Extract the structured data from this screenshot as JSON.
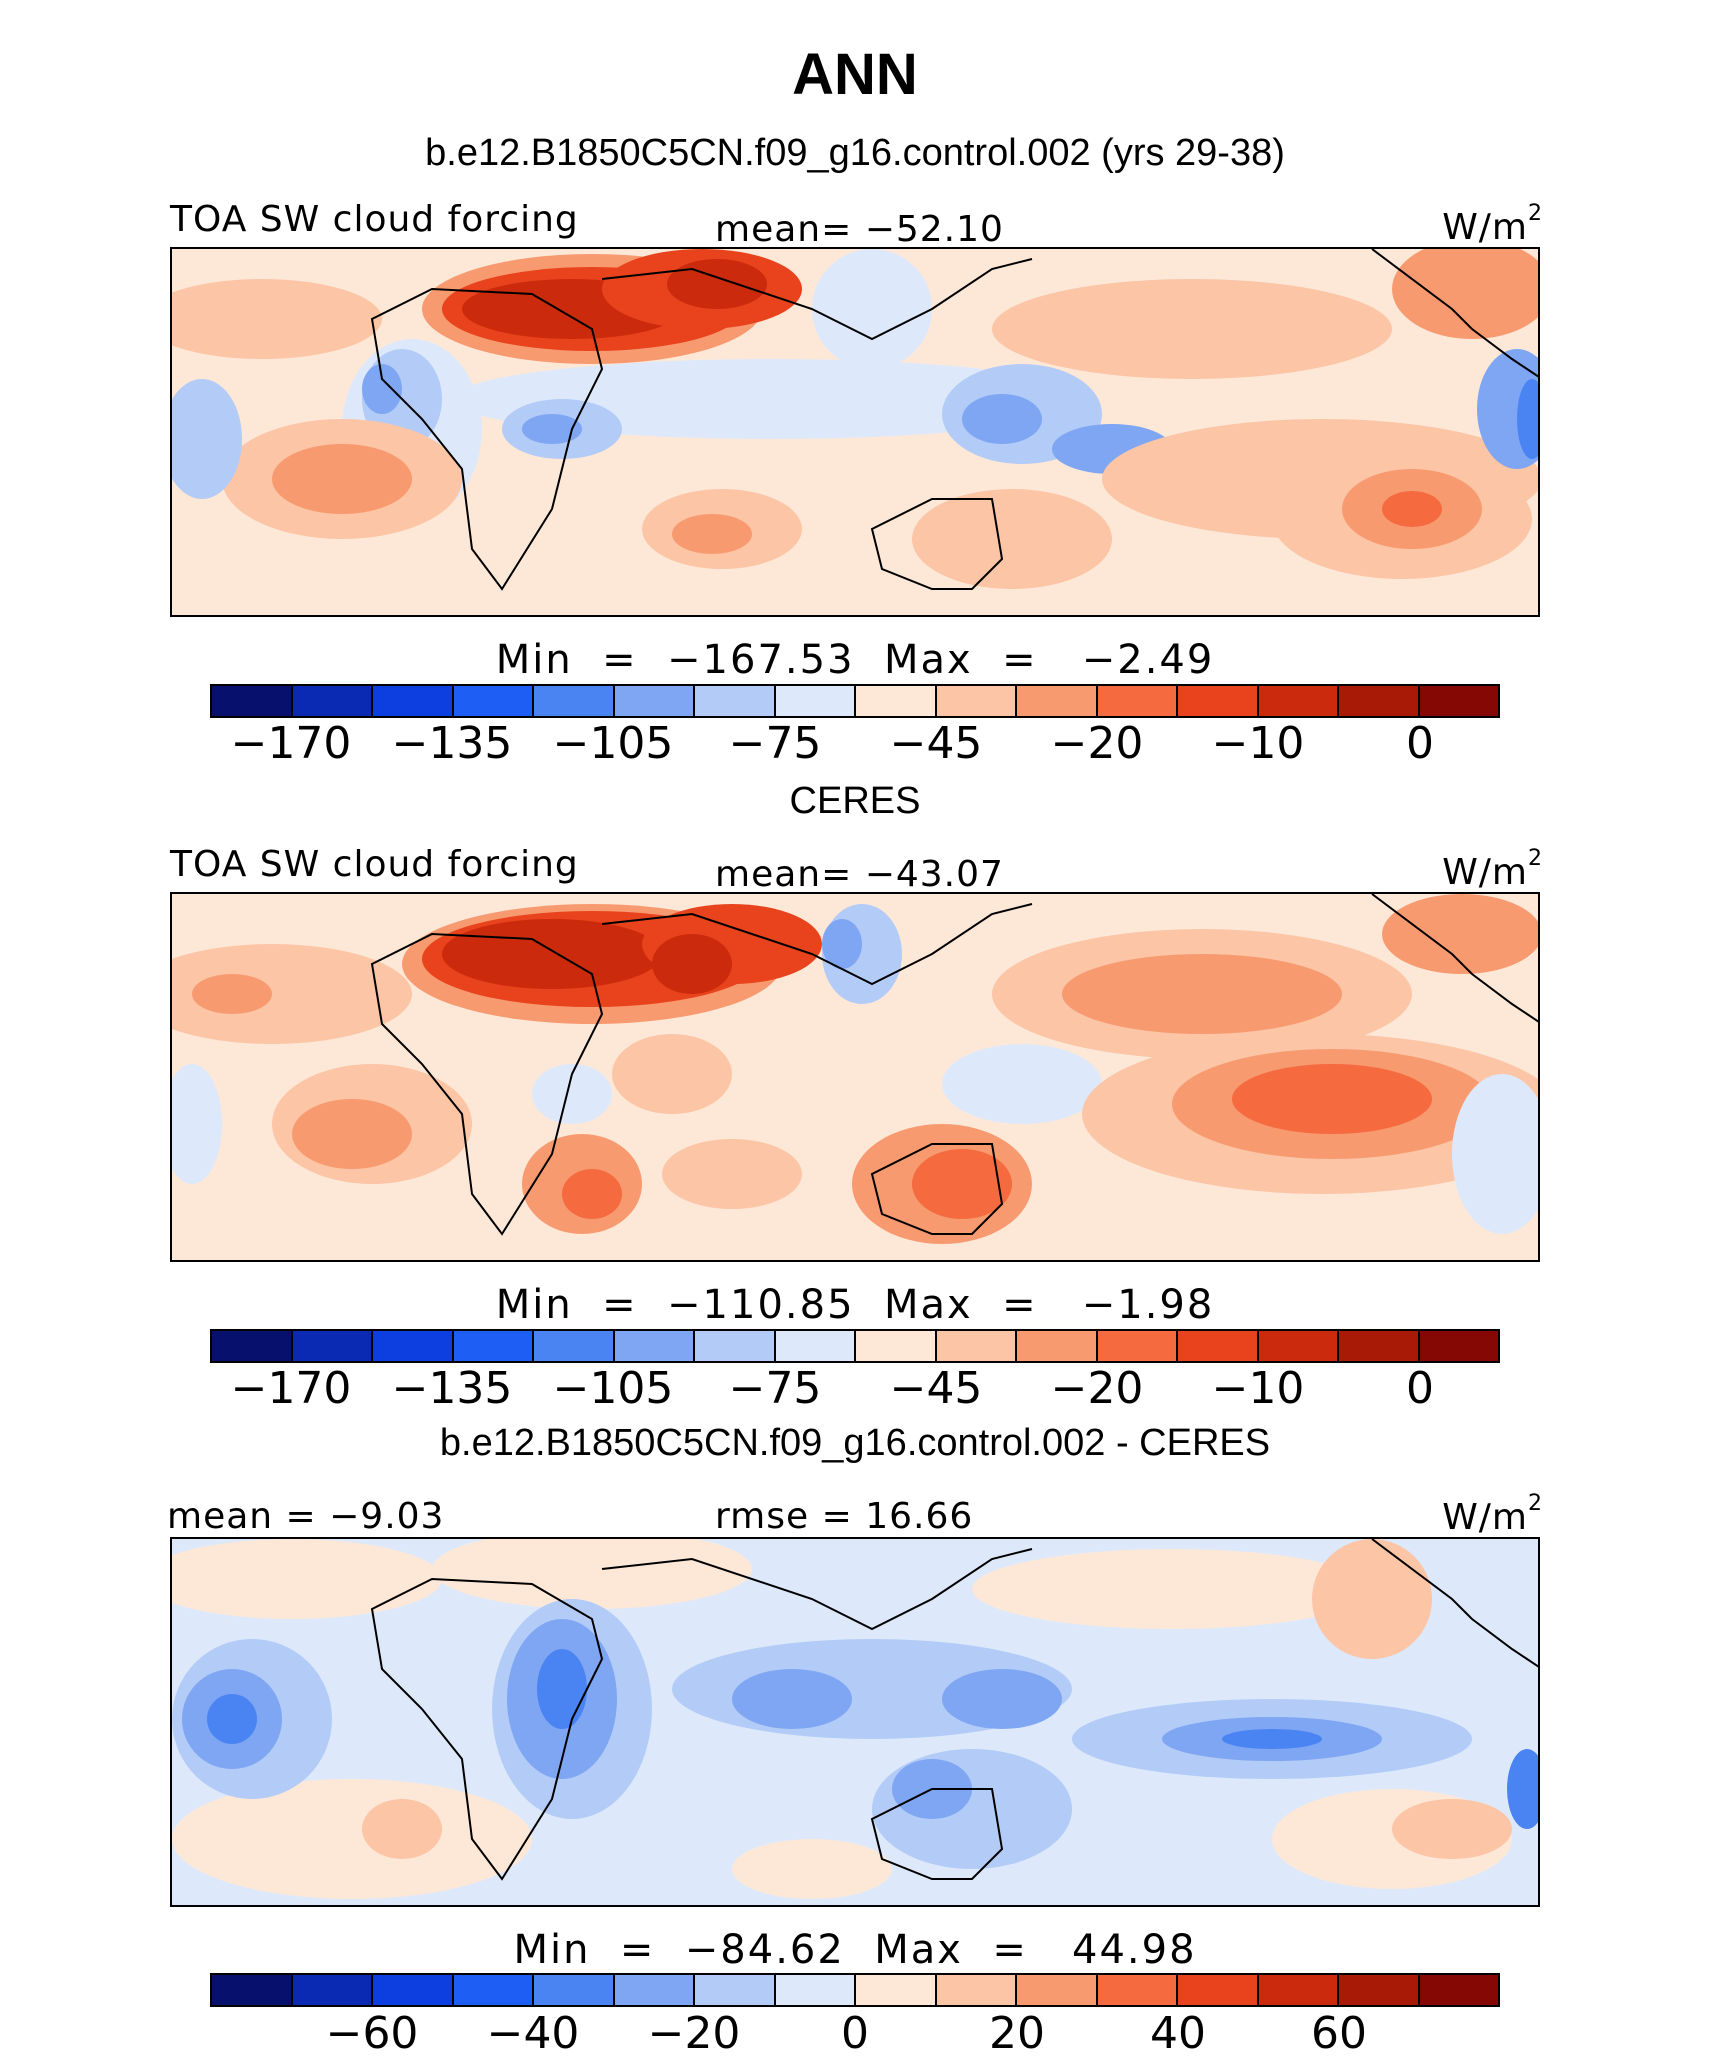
{
  "title": "ANN",
  "colorbar_colors": [
    "#08106e",
    "#0a2ab3",
    "#0d3fe0",
    "#1f5ef5",
    "#4a84f2",
    "#7ea6f2",
    "#b3cbf7",
    "#dde9fb",
    "#fde8d8",
    "#fbc5a6",
    "#f89a70",
    "#f56a3e",
    "#e8431c",
    "#cc2a0c",
    "#a81a06",
    "#850805"
  ],
  "panels": [
    {
      "subtitle": "b.e12.B1850C5CN.f09_g16.control.002 (yrs 29-38)",
      "left_label": "TOA SW cloud forcing",
      "center_label": "mean=  −52.10",
      "units": "W/m",
      "units_sup": "2",
      "minmax": "Min  =  −167.53  Max  =   −2.49",
      "colorbar_ticks": [
        "−170",
        "−135",
        "−105",
        "−75",
        "−45",
        "−20",
        "−10",
        "0"
      ]
    },
    {
      "subtitle": "CERES",
      "left_label": "TOA SW cloud forcing",
      "center_label": "mean=  −43.07",
      "units": "W/m",
      "units_sup": "2",
      "minmax": "Min  =  −110.85  Max  =   −1.98",
      "colorbar_ticks": [
        "−170",
        "−135",
        "−105",
        "−75",
        "−45",
        "−20",
        "−10",
        "0"
      ]
    },
    {
      "subtitle": "b.e12.B1850C5CN.f09_g16.control.002 - CERES",
      "left_label": "mean =   −9.03",
      "center_label": "rmse =   16.66",
      "units": "W/m",
      "units_sup": "2",
      "minmax": "Min  =  −84.62  Max  =   44.98",
      "colorbar_ticks": [
        "−60",
        "−40",
        "−20",
        "0",
        "20",
        "40",
        "60"
      ]
    }
  ]
}
